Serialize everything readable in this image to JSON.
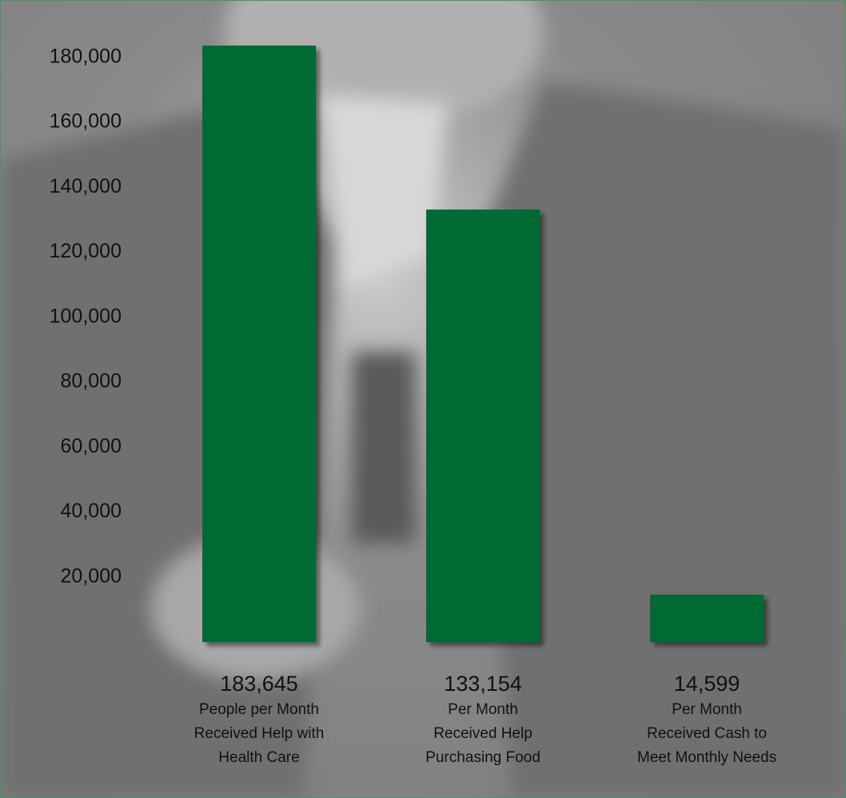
{
  "chart_data": {
    "type": "bar",
    "categories": [
      "People per Month\nReceived Help with\nHealth Care",
      "Per Month\nReceived Help\nPurchasing Food",
      "Per Month\nReceived Cash to\nMeet Monthly Needs"
    ],
    "values": [
      183645,
      133154,
      14599
    ],
    "value_labels": [
      "183,645",
      "133,154",
      "14,599"
    ],
    "color": "#006b34",
    "ylim": [
      0,
      200000
    ],
    "yticks": [
      {
        "value": 20000,
        "label": "20,000"
      },
      {
        "value": 40000,
        "label": "40,000"
      },
      {
        "value": 60000,
        "label": "60,000"
      },
      {
        "value": 80000,
        "label": "80,000"
      },
      {
        "value": 100000,
        "label": "100,000"
      },
      {
        "value": 120000,
        "label": "120,000"
      },
      {
        "value": 140000,
        "label": "140,000"
      },
      {
        "value": 160000,
        "label": "160,000"
      },
      {
        "value": 180000,
        "label": "180,000"
      }
    ],
    "grid": false
  }
}
